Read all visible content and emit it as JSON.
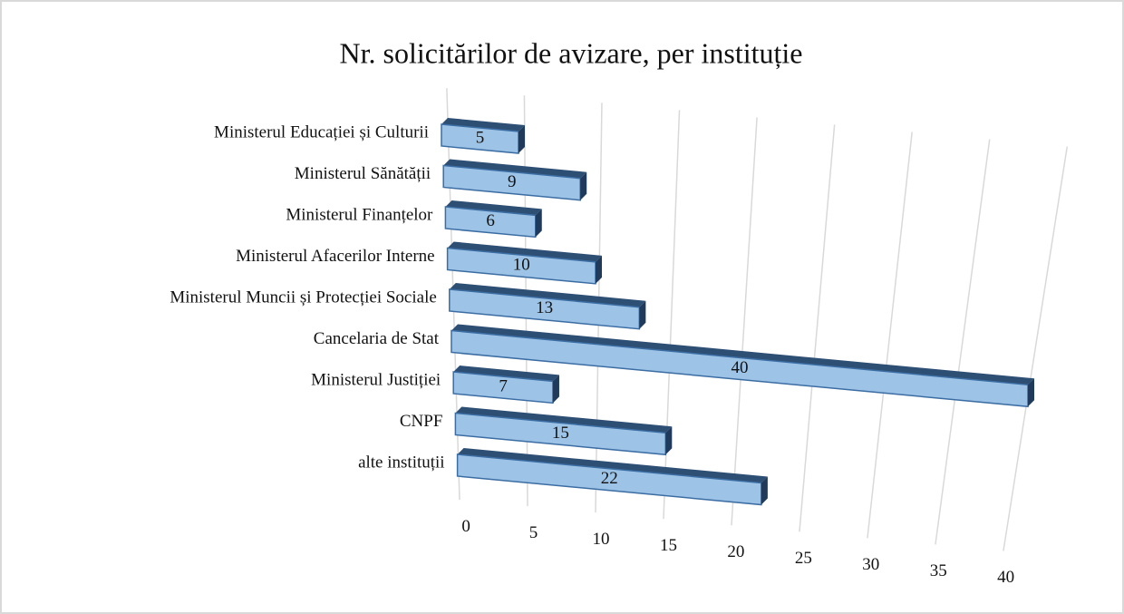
{
  "chart_data": {
    "type": "bar3d",
    "title": "Nr. solicitărilor de avizare, per instituție",
    "categories": [
      "Ministerul Educației și Culturii",
      "Ministerul Sănătății",
      "Ministerul Finanțelor",
      "Ministerul Afacerilor Interne",
      "Ministerul Muncii și Protecției Sociale",
      "Cancelaria de Stat",
      "Ministerul Justiției",
      "CNPF",
      "alte instituții"
    ],
    "values": [
      5,
      9,
      6,
      10,
      13,
      40,
      7,
      15,
      22
    ],
    "color": "#9dc3e6",
    "xlim": [
      0,
      40
    ],
    "xticks": [
      0,
      5,
      10,
      15,
      20,
      25,
      30,
      35,
      40
    ],
    "grid": true
  }
}
